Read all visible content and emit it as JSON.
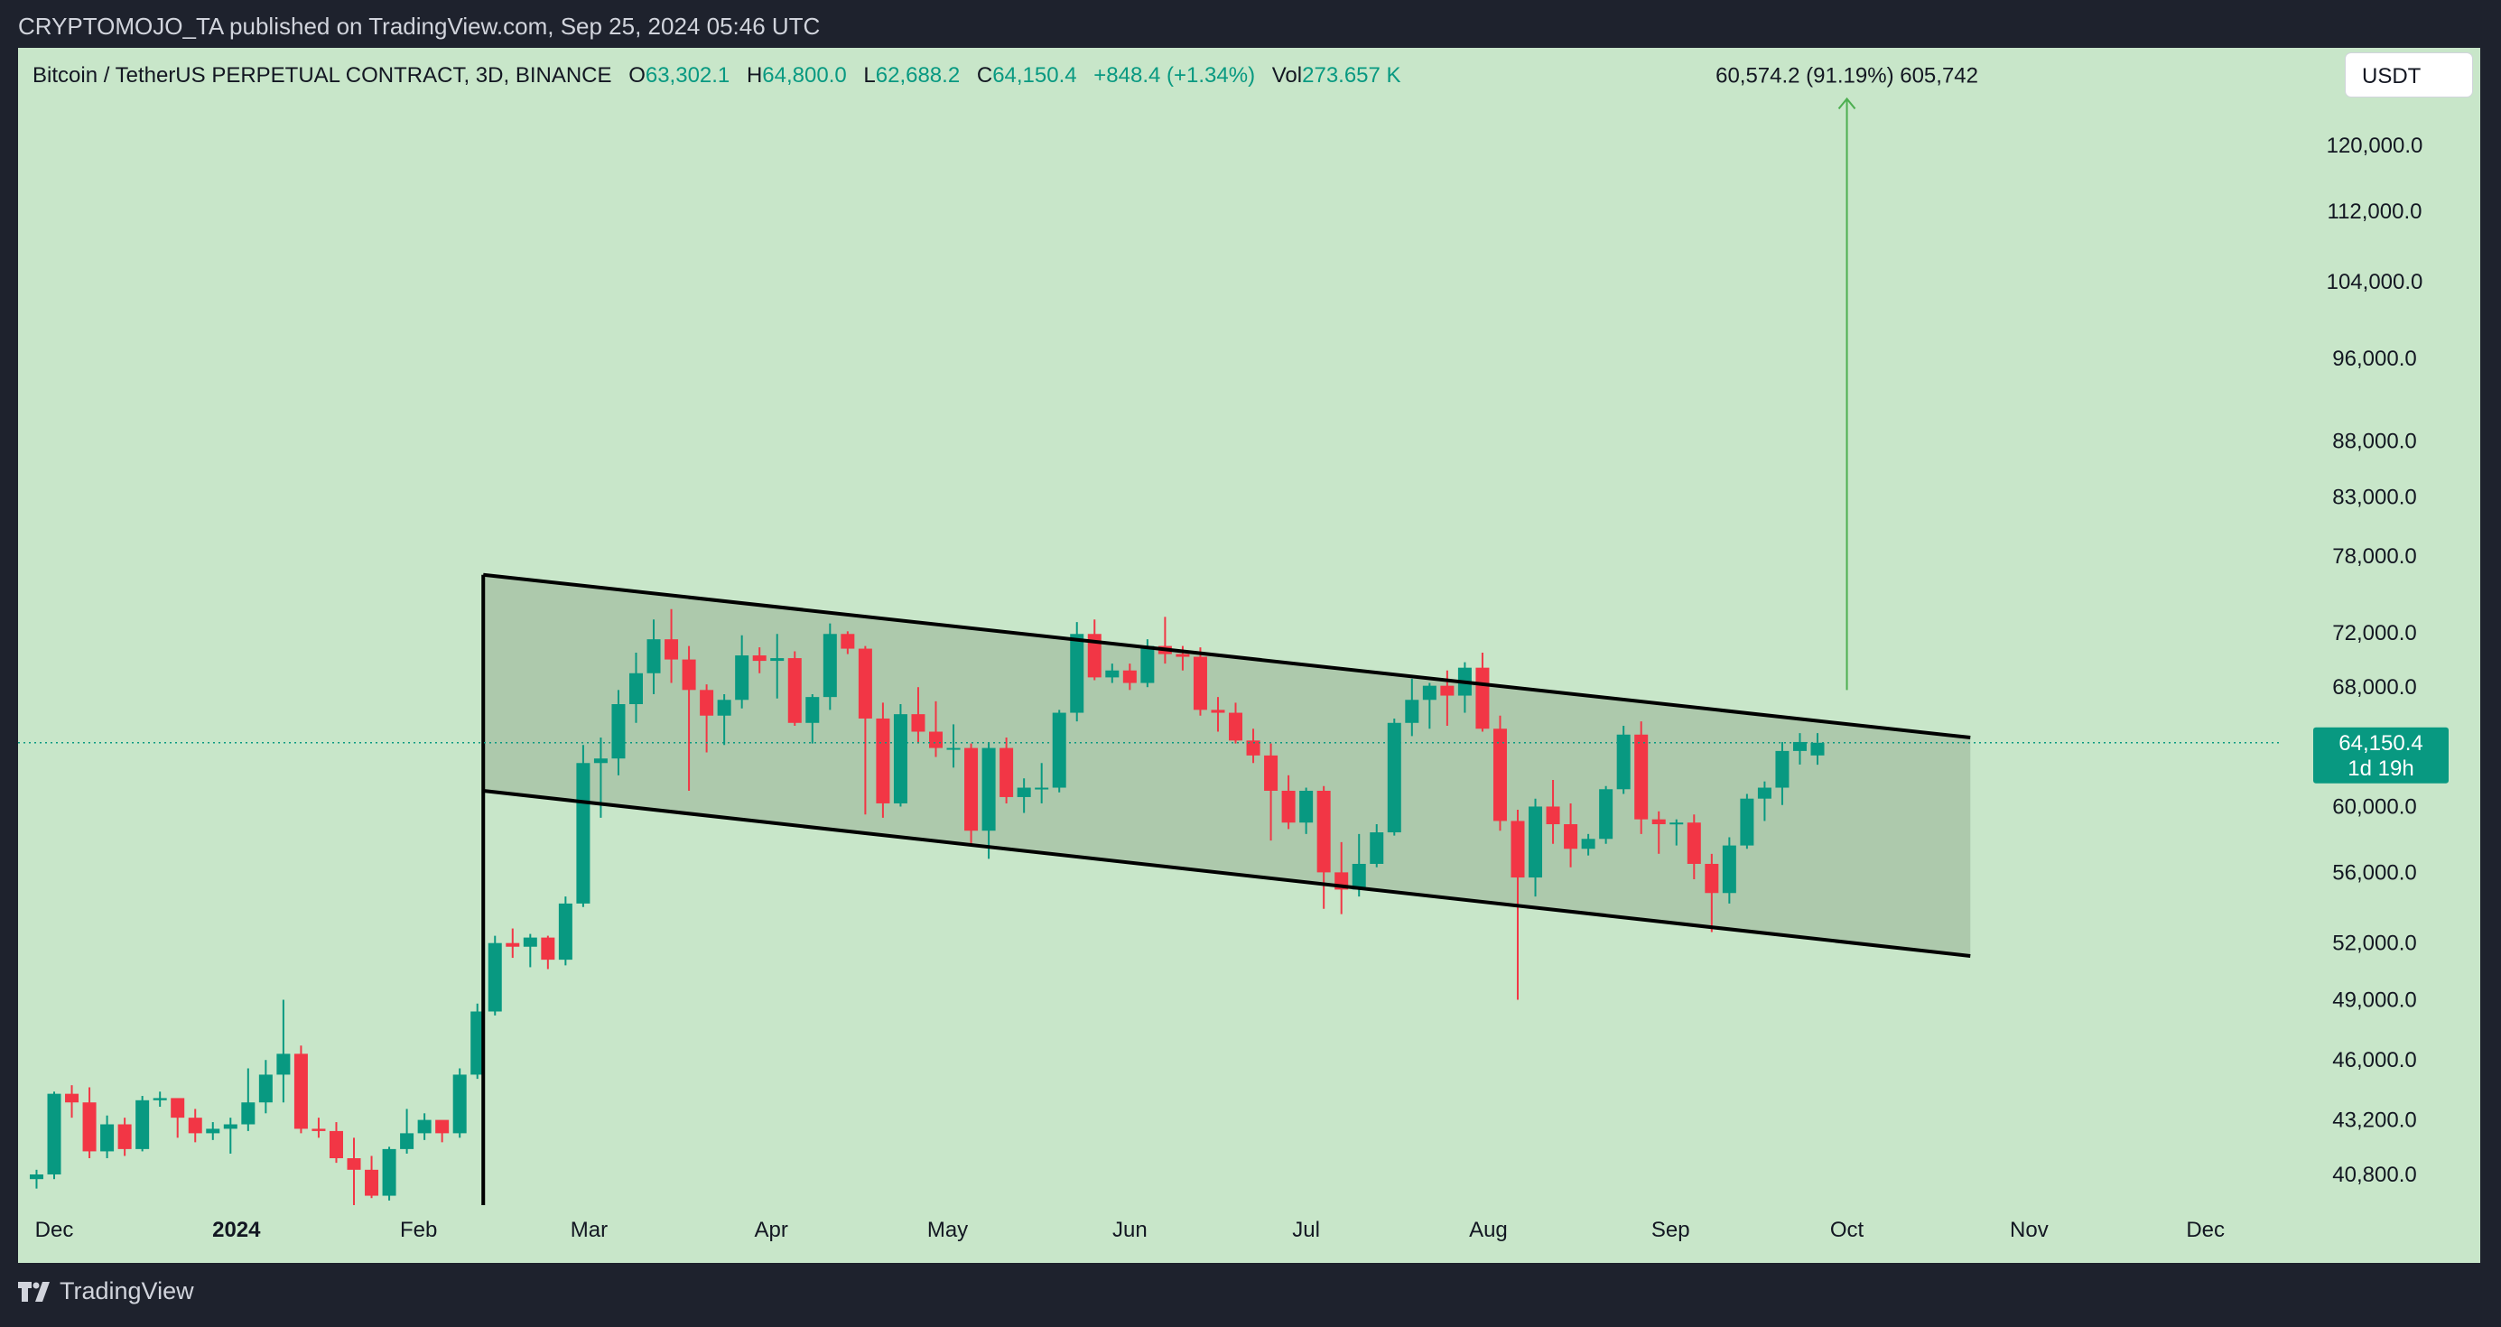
{
  "header": {
    "publisher": "CRYPTOMOJO_TA published on TradingView.com, Sep 25, 2024 05:46 UTC"
  },
  "legend": {
    "symbol": "Bitcoin / TetherUS PERPETUAL CONTRACT, 3D, BINANCE",
    "open_label": "O",
    "open": "63,302.1",
    "high_label": "H",
    "high": "64,800.0",
    "low_label": "L",
    "low": "62,688.2",
    "close_label": "C",
    "close": "64,150.4",
    "change": "+848.4 (+1.34%)",
    "vol_label": "Vol",
    "vol": "273.657 K"
  },
  "currency": "USDT",
  "footer": {
    "brand": "TradingView"
  },
  "colors": {
    "background": "#c8e6c9",
    "up": "#089981",
    "down": "#f23645",
    "channel_fill": "#adc9ac",
    "arrow": "#4caf50",
    "page": "#1e222d"
  },
  "chart_data": {
    "type": "candlestick",
    "symbol": "BTCUSDT.P",
    "interval": "3D",
    "scale": "log",
    "ylim": [
      38800,
      132000
    ],
    "x_ticks": [
      {
        "label": "Dec",
        "date": "2023-12-01",
        "bold": false
      },
      {
        "label": "2024",
        "date": "2024-01-01",
        "bold": true
      },
      {
        "label": "Feb",
        "date": "2024-02-01",
        "bold": false
      },
      {
        "label": "Mar",
        "date": "2024-03-01",
        "bold": false
      },
      {
        "label": "Apr",
        "date": "2024-04-01",
        "bold": false
      },
      {
        "label": "May",
        "date": "2024-05-01",
        "bold": false
      },
      {
        "label": "Jun",
        "date": "2024-06-01",
        "bold": false
      },
      {
        "label": "Jul",
        "date": "2024-07-01",
        "bold": false
      },
      {
        "label": "Aug",
        "date": "2024-08-01",
        "bold": false
      },
      {
        "label": "Sep",
        "date": "2024-09-01",
        "bold": false
      },
      {
        "label": "Oct",
        "date": "2024-10-01",
        "bold": false
      },
      {
        "label": "Nov",
        "date": "2024-11-01",
        "bold": false
      },
      {
        "label": "Dec",
        "date": "2024-12-01",
        "bold": false
      }
    ],
    "y_ticks": [
      {
        "label": "120,000.0",
        "value": 120000
      },
      {
        "label": "112,000.0",
        "value": 112000
      },
      {
        "label": "104,000.0",
        "value": 104000
      },
      {
        "label": "96,000.0",
        "value": 96000
      },
      {
        "label": "88,000.0",
        "value": 88000
      },
      {
        "label": "83,000.0",
        "value": 83000
      },
      {
        "label": "78,000.0",
        "value": 78000
      },
      {
        "label": "72,000.0",
        "value": 72000
      },
      {
        "label": "68,000.0",
        "value": 68000
      },
      {
        "label": "60,000.0",
        "value": 60000
      },
      {
        "label": "56,000.0",
        "value": 56000
      },
      {
        "label": "52,000.0",
        "value": 52000
      },
      {
        "label": "49,000.0",
        "value": 49000
      },
      {
        "label": "46,000.0",
        "value": 46000
      },
      {
        "label": "43,200.0",
        "value": 43200
      },
      {
        "label": "40,800.0",
        "value": 40800
      }
    ],
    "last_price": {
      "value": 64150.4,
      "label": "64,150.4",
      "countdown": "1d 19h"
    },
    "channel": {
      "upper": [
        {
          "date": "2024-02-12",
          "price": 76500
        },
        {
          "date": "2024-10-22",
          "price": 64500
        }
      ],
      "lower": [
        {
          "date": "2024-02-12",
          "price": 61000
        },
        {
          "date": "2024-10-22",
          "price": 51300
        }
      ],
      "pole": {
        "date": "2024-02-12",
        "from": 38800,
        "to": 76500
      }
    },
    "measure_arrow": {
      "date": "2024-10-01",
      "from": 67800,
      "to": 126000,
      "label": "60,574.2 (91.19%) 605,742"
    },
    "candles": [
      [
        "2023-11-28",
        40600,
        41000,
        40200,
        40800
      ],
      [
        "2023-12-01",
        40800,
        44500,
        40600,
        44400
      ],
      [
        "2023-12-04",
        44400,
        44800,
        43300,
        44000
      ],
      [
        "2023-12-07",
        44000,
        44700,
        41500,
        41800
      ],
      [
        "2023-12-10",
        41800,
        43400,
        41500,
        43000
      ],
      [
        "2023-12-13",
        43000,
        43300,
        41600,
        41900
      ],
      [
        "2023-12-16",
        41900,
        44300,
        41800,
        44100
      ],
      [
        "2023-12-19",
        44100,
        44500,
        43800,
        44200
      ],
      [
        "2023-12-22",
        44200,
        44100,
        42400,
        43300
      ],
      [
        "2023-12-25",
        43300,
        43700,
        42200,
        42600
      ],
      [
        "2023-12-28",
        42600,
        43100,
        42300,
        42800
      ],
      [
        "2023-12-31",
        42800,
        43300,
        41700,
        43000
      ],
      [
        "2024-01-03",
        43000,
        45600,
        42700,
        44000
      ],
      [
        "2024-01-06",
        44000,
        46000,
        43500,
        45300
      ],
      [
        "2024-01-09",
        45300,
        49000,
        44000,
        46300
      ],
      [
        "2024-01-12",
        46300,
        46700,
        42600,
        42800
      ],
      [
        "2024-01-15",
        42800,
        43300,
        42400,
        42700
      ],
      [
        "2024-01-18",
        42700,
        43100,
        41300,
        41500
      ],
      [
        "2024-01-21",
        41500,
        42400,
        39500,
        41000
      ],
      [
        "2024-01-24",
        41000,
        41600,
        39800,
        39900
      ],
      [
        "2024-01-27",
        39900,
        42000,
        39700,
        41900
      ],
      [
        "2024-01-30",
        41900,
        43700,
        41700,
        42600
      ],
      [
        "2024-02-02",
        42600,
        43500,
        42300,
        43200
      ],
      [
        "2024-02-05",
        43200,
        43100,
        42200,
        42600
      ],
      [
        "2024-02-08",
        42600,
        45600,
        42400,
        45300
      ],
      [
        "2024-02-11",
        45300,
        48800,
        45100,
        48400
      ],
      [
        "2024-02-14",
        48400,
        52400,
        48200,
        52000
      ],
      [
        "2024-02-17",
        52000,
        52800,
        51200,
        51800
      ],
      [
        "2024-02-20",
        51800,
        52500,
        50700,
        52300
      ],
      [
        "2024-02-23",
        52300,
        52400,
        50600,
        51100
      ],
      [
        "2024-02-26",
        51100,
        54600,
        50800,
        54200
      ],
      [
        "2024-02-29",
        54200,
        64000,
        54000,
        62800
      ],
      [
        "2024-03-03",
        62800,
        64500,
        59300,
        63100
      ],
      [
        "2024-03-06",
        63100,
        67800,
        62000,
        66800
      ],
      [
        "2024-03-09",
        66800,
        70500,
        65500,
        69000
      ],
      [
        "2024-03-12",
        69000,
        73000,
        67500,
        71500
      ],
      [
        "2024-03-15",
        71500,
        73800,
        68300,
        70000
      ],
      [
        "2024-03-18",
        70000,
        71000,
        61000,
        67800
      ],
      [
        "2024-03-21",
        67800,
        68200,
        63500,
        66000
      ],
      [
        "2024-03-24",
        66000,
        67500,
        64000,
        67100
      ],
      [
        "2024-03-27",
        67100,
        71800,
        66500,
        70300
      ],
      [
        "2024-03-30",
        70300,
        70900,
        69000,
        69900
      ],
      [
        "2024-04-02",
        69900,
        71900,
        67200,
        70100
      ],
      [
        "2024-04-05",
        70100,
        70600,
        65300,
        65500
      ],
      [
        "2024-04-08",
        65500,
        67500,
        64100,
        67300
      ],
      [
        "2024-04-11",
        67300,
        72700,
        66400,
        71900
      ],
      [
        "2024-04-14",
        71900,
        72100,
        70400,
        70800
      ],
      [
        "2024-04-17",
        70800,
        71000,
        59500,
        65800
      ],
      [
        "2024-04-20",
        65800,
        66900,
        59300,
        60200
      ],
      [
        "2024-04-23",
        60200,
        66800,
        60000,
        66100
      ],
      [
        "2024-04-26",
        66100,
        68000,
        64100,
        64900
      ],
      [
        "2024-04-29",
        64900,
        67000,
        63200,
        63800
      ],
      [
        "2024-05-02",
        63800,
        65400,
        62500,
        63800
      ],
      [
        "2024-05-05",
        63800,
        64100,
        57600,
        58500
      ],
      [
        "2024-05-08",
        58500,
        64200,
        56800,
        63800
      ],
      [
        "2024-05-11",
        63800,
        64500,
        60200,
        60600
      ],
      [
        "2024-05-14",
        60600,
        61800,
        59600,
        61200
      ],
      [
        "2024-05-17",
        61200,
        62800,
        60200,
        61200
      ],
      [
        "2024-05-20",
        61200,
        66400,
        60900,
        66200
      ],
      [
        "2024-05-23",
        66200,
        72800,
        65600,
        71900
      ],
      [
        "2024-05-26",
        71900,
        73000,
        68500,
        68700
      ],
      [
        "2024-05-29",
        68700,
        69700,
        68300,
        69200
      ],
      [
        "2024-06-01",
        69200,
        69700,
        67800,
        68300
      ],
      [
        "2024-06-04",
        68300,
        71500,
        68000,
        71000
      ],
      [
        "2024-06-07",
        71000,
        73200,
        69700,
        70400
      ],
      [
        "2024-06-10",
        70400,
        71000,
        69200,
        70200
      ],
      [
        "2024-06-13",
        70200,
        70900,
        66000,
        66400
      ],
      [
        "2024-06-16",
        66400,
        67300,
        64900,
        66200
      ],
      [
        "2024-06-19",
        66200,
        66900,
        64100,
        64300
      ],
      [
        "2024-06-22",
        64300,
        65100,
        62800,
        63300
      ],
      [
        "2024-06-25",
        63300,
        64100,
        57900,
        61000
      ],
      [
        "2024-06-28",
        61000,
        62000,
        58600,
        59000
      ],
      [
        "2024-07-01",
        59000,
        61200,
        58300,
        61000
      ],
      [
        "2024-07-04",
        61000,
        61300,
        53900,
        56000
      ],
      [
        "2024-07-07",
        56000,
        57800,
        53600,
        55000
      ],
      [
        "2024-07-10",
        55000,
        58300,
        54600,
        56500
      ],
      [
        "2024-07-13",
        56500,
        58900,
        56300,
        58400
      ],
      [
        "2024-07-16",
        58400,
        65800,
        58200,
        65500
      ],
      [
        "2024-07-19",
        65500,
        68600,
        64600,
        67100
      ],
      [
        "2024-07-22",
        67100,
        68300,
        65100,
        68100
      ],
      [
        "2024-07-25",
        68100,
        69200,
        65300,
        67400
      ],
      [
        "2024-07-28",
        67400,
        69800,
        66200,
        69400
      ],
      [
        "2024-07-31",
        69400,
        70500,
        64900,
        65100
      ],
      [
        "2024-08-03",
        65100,
        66000,
        58500,
        59100
      ],
      [
        "2024-08-06",
        59100,
        59800,
        49000,
        55700
      ],
      [
        "2024-08-09",
        55700,
        60500,
        54600,
        60000
      ],
      [
        "2024-08-12",
        60000,
        61700,
        57700,
        58900
      ],
      [
        "2024-08-15",
        58900,
        60200,
        56300,
        57400
      ],
      [
        "2024-08-18",
        57400,
        58300,
        57000,
        58000
      ],
      [
        "2024-08-21",
        58000,
        61300,
        57700,
        61100
      ],
      [
        "2024-08-24",
        61100,
        65300,
        60800,
        64700
      ],
      [
        "2024-08-27",
        64700,
        65600,
        58300,
        59200
      ],
      [
        "2024-08-30",
        59200,
        59700,
        57100,
        58900
      ],
      [
        "2024-09-02",
        58900,
        59200,
        57600,
        59000
      ],
      [
        "2024-09-05",
        59000,
        59500,
        55600,
        56500
      ],
      [
        "2024-09-08",
        56500,
        57100,
        52600,
        54800
      ],
      [
        "2024-09-11",
        54800,
        58100,
        54200,
        57600
      ],
      [
        "2024-09-14",
        57600,
        60800,
        57400,
        60500
      ],
      [
        "2024-09-17",
        60500,
        61600,
        59100,
        61200
      ],
      [
        "2024-09-20",
        61200,
        64200,
        60100,
        63600
      ],
      [
        "2024-09-23",
        63600,
        64800,
        62700,
        64200
      ],
      [
        "2024-09-26",
        63302.1,
        64800.0,
        62688.2,
        64150.4
      ]
    ]
  }
}
